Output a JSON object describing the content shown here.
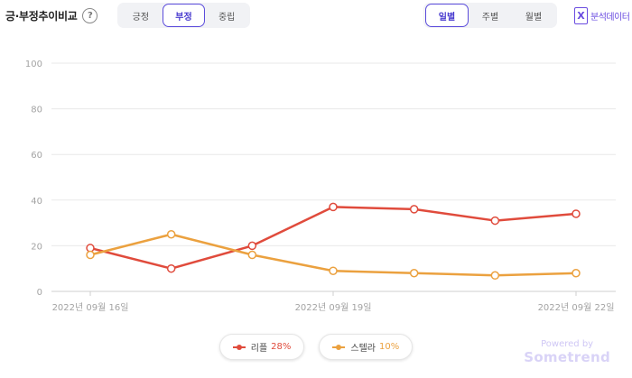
{
  "header": {
    "title": "긍·부정추이비교",
    "help_glyph": "?",
    "sentiment_tabs": [
      {
        "label": "긍정",
        "active": false
      },
      {
        "label": "부정",
        "active": true
      },
      {
        "label": "중립",
        "active": false
      }
    ],
    "period_tabs": [
      {
        "label": "일별",
        "active": true
      },
      {
        "label": "주별",
        "active": false
      },
      {
        "label": "월별",
        "active": false
      }
    ],
    "export_label": "분석데이터",
    "export_glyph": "X"
  },
  "chart_data": {
    "type": "line",
    "x": [
      "2022-09-16",
      "2022-09-17",
      "2022-09-18",
      "2022-09-19",
      "2022-09-20",
      "2022-09-21",
      "2022-09-22"
    ],
    "x_tick_labels": [
      {
        "index": 0,
        "label": "2022년 09월 16일"
      },
      {
        "index": 3,
        "label": "2022년 09월 19일"
      },
      {
        "index": 6,
        "label": "2022년 09월 22일"
      }
    ],
    "y_ticks": [
      0,
      20,
      40,
      60,
      80,
      100
    ],
    "ylim": [
      0,
      100
    ],
    "grid": true,
    "legend_position": "bottom-center",
    "series": [
      {
        "name": "리플",
        "share": "28%",
        "color": "#e04b3c",
        "values": [
          19,
          10,
          20,
          37,
          36,
          31,
          34
        ]
      },
      {
        "name": "스텔라",
        "share": "10%",
        "color": "#eba13f",
        "values": [
          16,
          25,
          16,
          9,
          8,
          7,
          8
        ]
      }
    ]
  },
  "watermark": {
    "line1": "Powered by",
    "line2": "Sometrend"
  }
}
